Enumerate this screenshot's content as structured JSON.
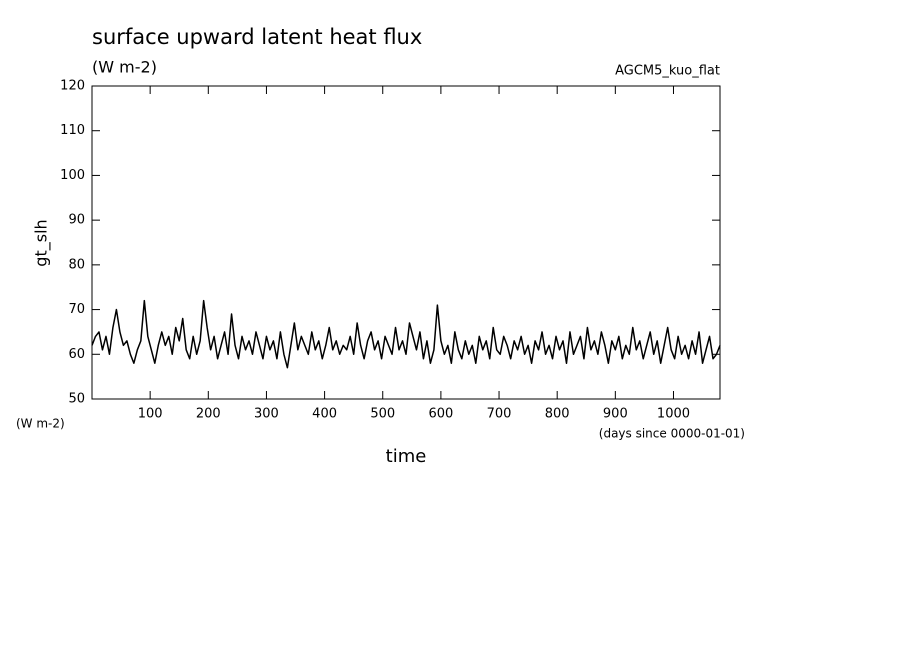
{
  "chart_data": {
    "type": "line",
    "title": "surface upward latent heat flux",
    "subtitle": "(W m-2)",
    "annotation": "AGCM5_kuo_flat",
    "ylabel": "gt_slh",
    "yunits": "(W m-2)",
    "xlabel": "time",
    "xunits": "(days since 0000-01-01)",
    "color": "#000000",
    "xlim": [
      0,
      1080
    ],
    "ylim": [
      50,
      120
    ],
    "xticks": [
      100,
      200,
      300,
      400,
      500,
      600,
      700,
      800,
      900,
      1000
    ],
    "yticks": [
      50,
      60,
      70,
      80,
      90,
      100,
      110,
      120
    ],
    "x": [
      0,
      6,
      12,
      18,
      24,
      30,
      36,
      42,
      48,
      54,
      60,
      66,
      72,
      78,
      84,
      90,
      96,
      102,
      108,
      114,
      120,
      126,
      132,
      138,
      144,
      150,
      156,
      162,
      168,
      174,
      180,
      186,
      192,
      198,
      204,
      210,
      216,
      222,
      228,
      234,
      240,
      246,
      252,
      258,
      264,
      270,
      276,
      282,
      288,
      294,
      300,
      306,
      312,
      318,
      324,
      330,
      336,
      342,
      348,
      354,
      360,
      366,
      372,
      378,
      384,
      390,
      396,
      402,
      408,
      414,
      420,
      426,
      432,
      438,
      444,
      450,
      456,
      462,
      468,
      474,
      480,
      486,
      492,
      498,
      504,
      510,
      516,
      522,
      528,
      534,
      540,
      546,
      552,
      558,
      564,
      570,
      576,
      582,
      588,
      594,
      600,
      606,
      612,
      618,
      624,
      630,
      636,
      642,
      648,
      654,
      660,
      666,
      672,
      678,
      684,
      690,
      696,
      702,
      708,
      714,
      720,
      726,
      732,
      738,
      744,
      750,
      756,
      762,
      768,
      774,
      780,
      786,
      792,
      798,
      804,
      810,
      816,
      822,
      828,
      834,
      840,
      846,
      852,
      858,
      864,
      870,
      876,
      882,
      888,
      894,
      900,
      906,
      912,
      918,
      924,
      930,
      936,
      942,
      948,
      954,
      960,
      966,
      972,
      978,
      984,
      990,
      996,
      1002,
      1008,
      1014,
      1020,
      1026,
      1032,
      1038,
      1044,
      1050,
      1056,
      1062,
      1068,
      1074,
      1080
    ],
    "values": [
      62,
      64,
      65,
      61,
      64,
      60,
      66,
      70,
      65,
      62,
      63,
      60,
      58,
      61,
      63,
      72,
      64,
      61,
      58,
      62,
      65,
      62,
      64,
      60,
      66,
      63,
      68,
      61,
      59,
      64,
      60,
      63,
      72,
      66,
      61,
      64,
      59,
      62,
      65,
      60,
      69,
      62,
      59,
      64,
      61,
      63,
      60,
      65,
      62,
      59,
      64,
      61,
      63,
      59,
      65,
      60,
      57,
      62,
      67,
      61,
      64,
      62,
      60,
      65,
      61,
      63,
      59,
      62,
      66,
      61,
      63,
      60,
      62,
      61,
      64,
      60,
      67,
      62,
      59,
      63,
      65,
      61,
      63,
      59,
      64,
      62,
      60,
      66,
      61,
      63,
      60,
      67,
      64,
      61,
      65,
      59,
      63,
      58,
      61,
      71,
      63,
      60,
      62,
      58,
      65,
      61,
      59,
      63,
      60,
      62,
      58,
      64,
      61,
      63,
      59,
      66,
      61,
      60,
      64,
      62,
      59,
      63,
      61,
      64,
      60,
      62,
      58,
      63,
      61,
      65,
      60,
      62,
      59,
      64,
      61,
      63,
      58,
      65,
      60,
      62,
      64,
      59,
      66,
      61,
      63,
      60,
      65,
      62,
      58,
      63,
      61,
      64,
      59,
      62,
      60,
      66,
      61,
      63,
      59,
      62,
      65,
      60,
      63,
      58,
      62,
      66,
      61,
      59,
      64,
      60,
      62,
      59,
      63,
      60,
      65,
      58,
      61,
      64,
      59,
      60,
      62
    ]
  }
}
